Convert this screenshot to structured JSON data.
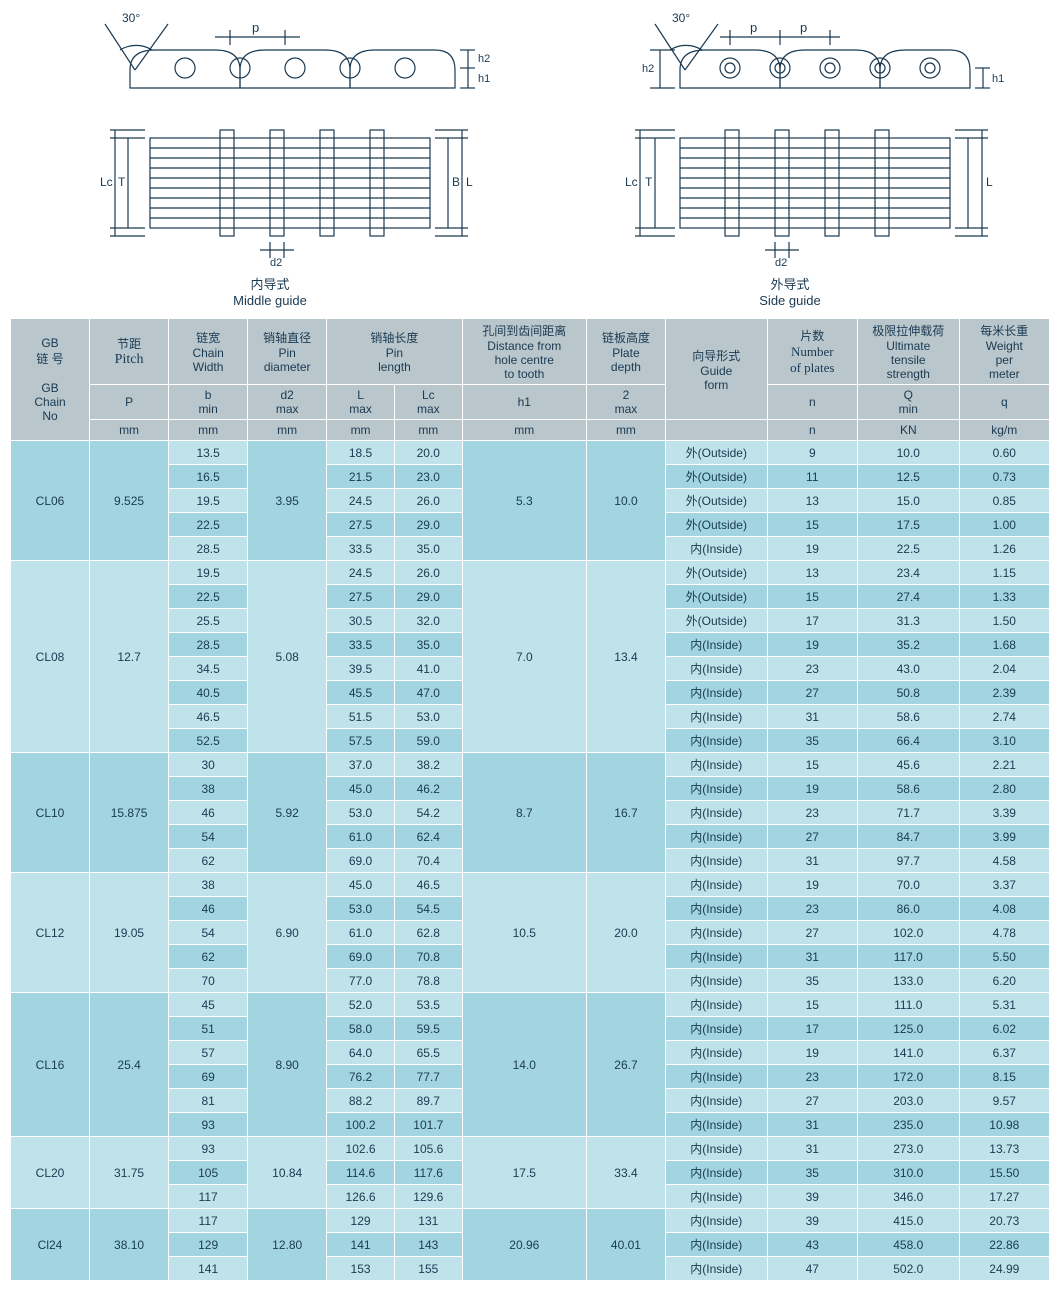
{
  "diagrams": {
    "left": {
      "cn": "内导式",
      "en": "Middle guide"
    },
    "right": {
      "cn": "外导式",
      "en": "Side guide"
    },
    "labels": {
      "angle": "30°",
      "p": "p",
      "h1": "h1",
      "h2": "h2",
      "T": "T",
      "Lc": "Lc",
      "L": "L",
      "B": "B",
      "d2": "d2"
    }
  },
  "headers": {
    "chain_top_cn": "GB\n链 号",
    "chain_bot": "GB\nChain\nNo",
    "pitch_cn": "节距",
    "pitch_en": "Pitch",
    "width_cn": "链宽",
    "width_en": "Chain\nWidth",
    "pin_d_cn": "销轴直径",
    "pin_d_en": "Pin\ndiameter",
    "pin_l_cn": "销轴长度",
    "pin_l_en": "Pin\nlength",
    "dist_cn": "孔间到齿间距离",
    "dist_en": "Distance from\nhole centre\nto tooth",
    "plate_cn": "链板高度",
    "plate_en": "Plate\ndepth",
    "guide_cn": "向导形式",
    "guide_en": "Guide\nform",
    "num_cn": "片数",
    "num_en": "Number",
    "num_en2": "of plates",
    "tensile_cn": "极限拉伸载荷",
    "tensile_en": "Ultimate\ntensile\nstrength",
    "weight_cn": "每米长重",
    "weight_en": "Weight\nper\nmeter",
    "P": "P",
    "b": "b\nmin",
    "d2": "d2\nmax",
    "L": "L\nmax",
    "Lc": "Lc\nmax",
    "h1": "h1",
    "two": "2\nmax",
    "n": "n",
    "Q": "Q\nmin",
    "q": "q",
    "mm": "mm",
    "KN": "KN",
    "kgm": "kg/m"
  },
  "groups": [
    {
      "chain": "CL06",
      "pitch": "9.525",
      "d2": "3.95",
      "h1": "5.3",
      "depth": "10.0",
      "style": "a",
      "rows": [
        {
          "b": "13.5",
          "L": "18.5",
          "Lc": "20.0",
          "guide": "外(Outside)",
          "n": "9",
          "Q": "10.0",
          "w": "0.60"
        },
        {
          "b": "16.5",
          "L": "21.5",
          "Lc": "23.0",
          "guide": "外(Outside)",
          "n": "11",
          "Q": "12.5",
          "w": "0.73"
        },
        {
          "b": "19.5",
          "L": "24.5",
          "Lc": "26.0",
          "guide": "外(Outside)",
          "n": "13",
          "Q": "15.0",
          "w": "0.85"
        },
        {
          "b": "22.5",
          "L": "27.5",
          "Lc": "29.0",
          "guide": "外(Outside)",
          "n": "15",
          "Q": "17.5",
          "w": "1.00"
        },
        {
          "b": "28.5",
          "L": "33.5",
          "Lc": "35.0",
          "guide": "内(Inside)",
          "n": "19",
          "Q": "22.5",
          "w": "1.26"
        }
      ]
    },
    {
      "chain": "CL08",
      "pitch": "12.7",
      "d2": "5.08",
      "h1": "7.0",
      "depth": "13.4",
      "style": "b",
      "rows": [
        {
          "b": "19.5",
          "L": "24.5",
          "Lc": "26.0",
          "guide": "外(Outside)",
          "n": "13",
          "Q": "23.4",
          "w": "1.15"
        },
        {
          "b": "22.5",
          "L": "27.5",
          "Lc": "29.0",
          "guide": "外(Outside)",
          "n": "15",
          "Q": "27.4",
          "w": "1.33"
        },
        {
          "b": "25.5",
          "L": "30.5",
          "Lc": "32.0",
          "guide": "外(Outside)",
          "n": "17",
          "Q": "31.3",
          "w": "1.50"
        },
        {
          "b": "28.5",
          "L": "33.5",
          "Lc": "35.0",
          "guide": "内(Inside)",
          "n": "19",
          "Q": "35.2",
          "w": "1.68"
        },
        {
          "b": "34.5",
          "L": "39.5",
          "Lc": "41.0",
          "guide": "内(Inside)",
          "n": "23",
          "Q": "43.0",
          "w": "2.04"
        },
        {
          "b": "40.5",
          "L": "45.5",
          "Lc": "47.0",
          "guide": "内(Inside)",
          "n": "27",
          "Q": "50.8",
          "w": "2.39"
        },
        {
          "b": "46.5",
          "L": "51.5",
          "Lc": "53.0",
          "guide": "内(Inside)",
          "n": "31",
          "Q": "58.6",
          "w": "2.74"
        },
        {
          "b": "52.5",
          "L": "57.5",
          "Lc": "59.0",
          "guide": "内(Inside)",
          "n": "35",
          "Q": "66.4",
          "w": "3.10"
        }
      ]
    },
    {
      "chain": "CL10",
      "pitch": "15.875",
      "d2": "5.92",
      "h1": "8.7",
      "depth": "16.7",
      "style": "a",
      "rows": [
        {
          "b": "30",
          "L": "37.0",
          "Lc": "38.2",
          "guide": "内(Inside)",
          "n": "15",
          "Q": "45.6",
          "w": "2.21"
        },
        {
          "b": "38",
          "L": "45.0",
          "Lc": "46.2",
          "guide": "内(Inside)",
          "n": "19",
          "Q": "58.6",
          "w": "2.80"
        },
        {
          "b": "46",
          "L": "53.0",
          "Lc": "54.2",
          "guide": "内(Inside)",
          "n": "23",
          "Q": "71.7",
          "w": "3.39"
        },
        {
          "b": "54",
          "L": "61.0",
          "Lc": "62.4",
          "guide": "内(Inside)",
          "n": "27",
          "Q": "84.7",
          "w": "3.99"
        },
        {
          "b": "62",
          "L": "69.0",
          "Lc": "70.4",
          "guide": "内(Inside)",
          "n": "31",
          "Q": "97.7",
          "w": "4.58"
        }
      ]
    },
    {
      "chain": "CL12",
      "pitch": "19.05",
      "d2": "6.90",
      "h1": "10.5",
      "depth": "20.0",
      "style": "b",
      "rows": [
        {
          "b": "38",
          "L": "45.0",
          "Lc": "46.5",
          "guide": "内(Inside)",
          "n": "19",
          "Q": "70.0",
          "w": "3.37"
        },
        {
          "b": "46",
          "L": "53.0",
          "Lc": "54.5",
          "guide": "内(Inside)",
          "n": "23",
          "Q": "86.0",
          "w": "4.08"
        },
        {
          "b": "54",
          "L": "61.0",
          "Lc": "62.8",
          "guide": "内(Inside)",
          "n": "27",
          "Q": "102.0",
          "w": "4.78"
        },
        {
          "b": "62",
          "L": "69.0",
          "Lc": "70.8",
          "guide": "内(Inside)",
          "n": "31",
          "Q": "117.0",
          "w": "5.50"
        },
        {
          "b": "70",
          "L": "77.0",
          "Lc": "78.8",
          "guide": "内(Inside)",
          "n": "35",
          "Q": "133.0",
          "w": "6.20"
        }
      ]
    },
    {
      "chain": "CL16",
      "pitch": "25.4",
      "d2": "8.90",
      "h1": "14.0",
      "depth": "26.7",
      "style": "a",
      "rows": [
        {
          "b": "45",
          "L": "52.0",
          "Lc": "53.5",
          "guide": "内(Inside)",
          "n": "15",
          "Q": "111.0",
          "w": "5.31"
        },
        {
          "b": "51",
          "L": "58.0",
          "Lc": "59.5",
          "guide": "内(Inside)",
          "n": "17",
          "Q": "125.0",
          "w": "6.02"
        },
        {
          "b": "57",
          "L": "64.0",
          "Lc": "65.5",
          "guide": "内(Inside)",
          "n": "19",
          "Q": "141.0",
          "w": "6.37"
        },
        {
          "b": "69",
          "L": "76.2",
          "Lc": "77.7",
          "guide": "内(Inside)",
          "n": "23",
          "Q": "172.0",
          "w": "8.15"
        },
        {
          "b": "81",
          "L": "88.2",
          "Lc": "89.7",
          "guide": "内(Inside)",
          "n": "27",
          "Q": "203.0",
          "w": "9.57"
        },
        {
          "b": "93",
          "L": "100.2",
          "Lc": "101.7",
          "guide": "内(Inside)",
          "n": "31",
          "Q": "235.0",
          "w": "10.98"
        }
      ]
    },
    {
      "chain": "CL20",
      "pitch": "31.75",
      "d2": "10.84",
      "h1": "17.5",
      "depth": "33.4",
      "style": "b",
      "rows": [
        {
          "b": "93",
          "L": "102.6",
          "Lc": "105.6",
          "guide": "内(Inside)",
          "n": "31",
          "Q": "273.0",
          "w": "13.73"
        },
        {
          "b": "105",
          "L": "114.6",
          "Lc": "117.6",
          "guide": "内(Inside)",
          "n": "35",
          "Q": "310.0",
          "w": "15.50"
        },
        {
          "b": "117",
          "L": "126.6",
          "Lc": "129.6",
          "guide": "内(Inside)",
          "n": "39",
          "Q": "346.0",
          "w": "17.27"
        }
      ]
    },
    {
      "chain": "Cl24",
      "pitch": "38.10",
      "d2": "12.80",
      "h1": "20.96",
      "depth": "40.01",
      "style": "a",
      "rows": [
        {
          "b": "117",
          "L": "129",
          "Lc": "131",
          "guide": "内(Inside)",
          "n": "39",
          "Q": "415.0",
          "w": "20.73"
        },
        {
          "b": "129",
          "L": "141",
          "Lc": "143",
          "guide": "内(Inside)",
          "n": "43",
          "Q": "458.0",
          "w": "22.86"
        },
        {
          "b": "141",
          "L": "153",
          "Lc": "155",
          "guide": "内(Inside)",
          "n": "47",
          "Q": "502.0",
          "w": "24.99"
        }
      ]
    }
  ]
}
